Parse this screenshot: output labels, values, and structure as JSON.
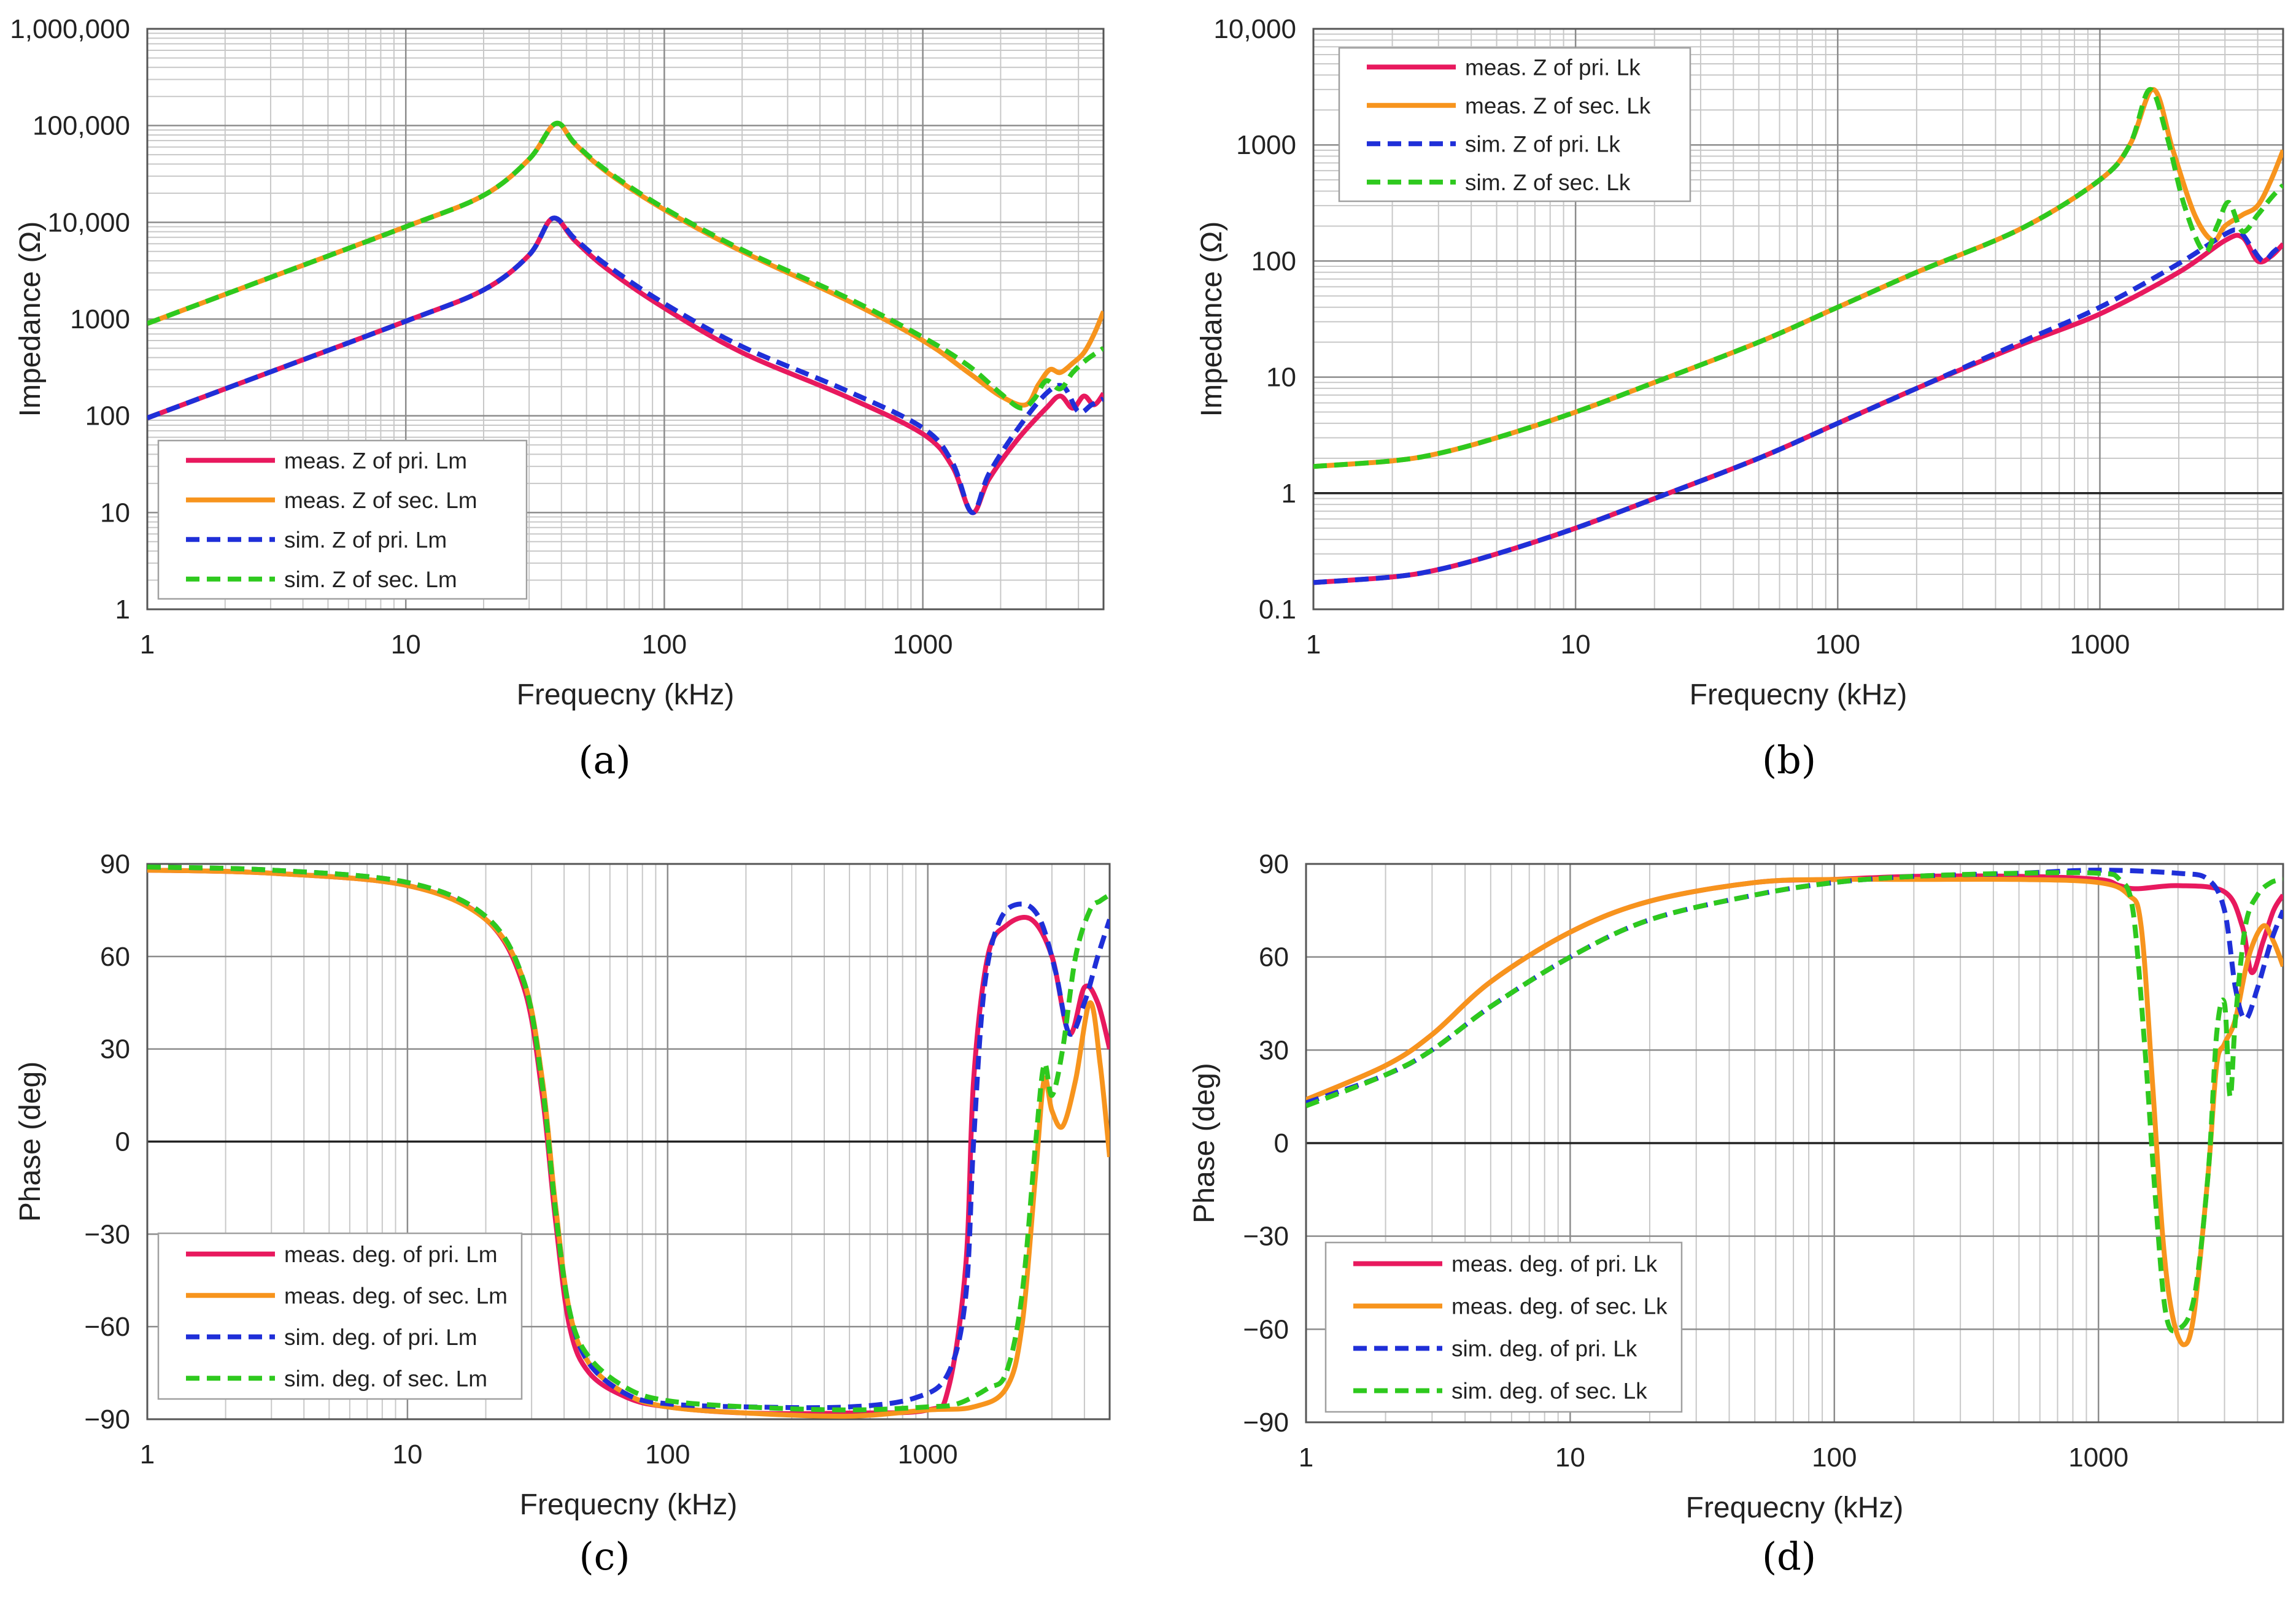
{
  "chart_data": [
    {
      "panel_label": "(a)",
      "type": "line",
      "xlabel": "Frequecny (kHz)",
      "ylabel": "Impedance (Ω)",
      "x_scale": "log",
      "y_scale": "log",
      "xlim": [
        1,
        5000
      ],
      "ylim": [
        1,
        1000000
      ],
      "x_ticks": [
        1,
        10,
        100,
        1000
      ],
      "x_tick_labels": [
        "1",
        "10",
        "100",
        "1000"
      ],
      "y_ticks": [
        1,
        10,
        100,
        1000,
        10000,
        100000,
        1000000
      ],
      "y_tick_labels": [
        "1",
        "10",
        "100",
        "1000",
        "10,000",
        "100,000",
        "1,000,000"
      ],
      "grid": true,
      "legend_position": "bottom-left",
      "series": [
        {
          "name": "meas. Z of pri. Lm",
          "color": "#e8195e",
          "dash": "solid",
          "x": [
            1,
            3,
            10,
            20,
            30,
            37,
            45,
            60,
            100,
            200,
            500,
            1000,
            1300,
            1550,
            1800,
            2300,
            3000,
            3400,
            3800,
            4200,
            4600,
            5000
          ],
          "y": [
            95,
            285,
            950,
            2000,
            4600,
            11000,
            6500,
            3300,
            1300,
            450,
            160,
            65,
            30,
            10,
            22,
            55,
            120,
            160,
            120,
            160,
            130,
            170
          ]
        },
        {
          "name": "meas. Z of sec. Lm",
          "color": "#f7941d",
          "dash": "solid",
          "x": [
            1,
            3,
            10,
            20,
            30,
            38,
            45,
            60,
            100,
            200,
            500,
            1000,
            1500,
            2000,
            2500,
            2800,
            3100,
            3400,
            3800,
            4200,
            4600,
            5000
          ],
          "y": [
            900,
            2700,
            9000,
            19000,
            45000,
            105000,
            65000,
            33000,
            13500,
            5000,
            1600,
            600,
            280,
            160,
            130,
            210,
            300,
            280,
            350,
            450,
            700,
            1200
          ]
        },
        {
          "name": "sim. Z of pri. Lm",
          "color": "#1f2fd8",
          "dash": "dashed",
          "x": [
            1,
            3,
            10,
            20,
            30,
            37,
            45,
            60,
            100,
            200,
            500,
            1000,
            1300,
            1550,
            1800,
            2300,
            3000,
            3500,
            4000,
            4500,
            5000
          ],
          "y": [
            95,
            285,
            950,
            2000,
            4600,
            11000,
            6800,
            3600,
            1450,
            520,
            185,
            75,
            33,
            10,
            25,
            70,
            170,
            200,
            110,
            130,
            150
          ]
        },
        {
          "name": "sim. Z of sec. Lm",
          "color": "#2ec91e",
          "dash": "dashed",
          "x": [
            1,
            3,
            10,
            20,
            30,
            38,
            45,
            60,
            100,
            200,
            500,
            1000,
            1500,
            2000,
            2400,
            2700,
            3000,
            3400,
            3800,
            4300,
            5000
          ],
          "y": [
            900,
            2700,
            9000,
            19000,
            45000,
            105000,
            66000,
            34000,
            14000,
            5200,
            1700,
            650,
            330,
            170,
            120,
            150,
            230,
            190,
            280,
            380,
            500
          ]
        }
      ]
    },
    {
      "panel_label": "(b)",
      "type": "line",
      "xlabel": "Frequecny (kHz)",
      "ylabel": "Impedance (Ω)",
      "x_scale": "log",
      "y_scale": "log",
      "xlim": [
        1,
        5000
      ],
      "ylim": [
        0.1,
        10000
      ],
      "x_ticks": [
        1,
        10,
        100,
        1000
      ],
      "x_tick_labels": [
        "1",
        "10",
        "100",
        "1000"
      ],
      "y_ticks": [
        0.1,
        1,
        10,
        100,
        1000,
        10000
      ],
      "y_tick_labels": [
        "0.1",
        "1",
        "10",
        "100",
        "1000",
        "10,000"
      ],
      "grid": true,
      "legend_position": "top-left",
      "series": [
        {
          "name": "meas. Z of pri. Lk",
          "color": "#e8195e",
          "dash": "solid",
          "x": [
            1,
            2,
            3,
            5,
            10,
            20,
            50,
            100,
            200,
            500,
            1000,
            2000,
            3000,
            3500,
            4000,
            4500,
            5000
          ],
          "y": [
            0.17,
            0.19,
            0.22,
            0.3,
            0.5,
            0.9,
            2,
            4,
            8,
            19,
            35,
            80,
            150,
            160,
            100,
            110,
            140
          ]
        },
        {
          "name": "meas. Z of sec. Lk",
          "color": "#f7941d",
          "dash": "solid",
          "x": [
            1,
            2,
            3,
            5,
            10,
            20,
            50,
            100,
            200,
            500,
            1000,
            1300,
            1600,
            1900,
            2300,
            2700,
            3000,
            3500,
            4000,
            4500,
            5000
          ],
          "y": [
            1.7,
            1.9,
            2.2,
            3,
            5,
            9,
            20,
            40,
            80,
            190,
            500,
            1000,
            3000,
            900,
            250,
            150,
            200,
            250,
            300,
            500,
            900
          ]
        },
        {
          "name": "sim. Z of pri. Lk",
          "color": "#1f2fd8",
          "dash": "dashed",
          "x": [
            1,
            2,
            3,
            5,
            10,
            20,
            50,
            100,
            200,
            500,
            1000,
            2000,
            3000,
            3400,
            3800,
            4200,
            4600,
            5000
          ],
          "y": [
            0.17,
            0.19,
            0.22,
            0.3,
            0.5,
            0.9,
            2,
            4,
            8,
            20,
            40,
            95,
            170,
            180,
            130,
            100,
            120,
            140
          ]
        },
        {
          "name": "sim. Z of sec. Lk",
          "color": "#2ec91e",
          "dash": "dashed",
          "x": [
            1,
            2,
            3,
            5,
            10,
            20,
            50,
            100,
            200,
            500,
            1000,
            1300,
            1550,
            1800,
            2100,
            2500,
            2800,
            3100,
            3500,
            4000,
            4500,
            5000
          ],
          "y": [
            1.7,
            1.9,
            2.2,
            3,
            5,
            9,
            20,
            40,
            80,
            190,
            500,
            1000,
            3000,
            1200,
            300,
            120,
            200,
            320,
            180,
            250,
            350,
            450
          ]
        }
      ]
    },
    {
      "panel_label": "(c)",
      "type": "line",
      "xlabel": "Frequecny (kHz)",
      "ylabel": "Phase (deg)",
      "x_scale": "log",
      "y_scale": "linear",
      "xlim": [
        1,
        5000
      ],
      "ylim": [
        -90,
        90
      ],
      "x_ticks": [
        1,
        10,
        100,
        1000
      ],
      "x_tick_labels": [
        "1",
        "10",
        "100",
        "1000"
      ],
      "y_ticks": [
        -90,
        -60,
        -30,
        0,
        30,
        60,
        90
      ],
      "y_tick_labels": [
        "−90",
        "−60",
        "−30",
        "0",
        "30",
        "60",
        "90"
      ],
      "grid": true,
      "legend_position": "bottom-left",
      "series": [
        {
          "name": "meas. deg. of pri. Lm",
          "color": "#e8195e",
          "dash": "solid",
          "x": [
            1,
            3,
            10,
            20,
            28,
            33,
            37,
            42,
            50,
            70,
            100,
            200,
            500,
            1000,
            1200,
            1400,
            1500,
            1700,
            2000,
            2500,
            3000,
            3500,
            4000,
            4500,
            5000
          ],
          "y": [
            88,
            87,
            83,
            72,
            50,
            15,
            -25,
            -60,
            -75,
            -83,
            -86,
            -88,
            -88,
            -87,
            -80,
            -40,
            20,
            60,
            70,
            72,
            60,
            35,
            50,
            45,
            30
          ]
        },
        {
          "name": "meas. deg. of sec. Lm",
          "color": "#f7941d",
          "dash": "solid",
          "x": [
            1,
            3,
            10,
            20,
            28,
            33,
            37,
            42,
            50,
            70,
            100,
            200,
            500,
            1000,
            1500,
            2000,
            2300,
            2600,
            2800,
            3000,
            3300,
            3700,
            4200,
            4600,
            5000
          ],
          "y": [
            88,
            87,
            83,
            72,
            52,
            20,
            -20,
            -55,
            -72,
            -82,
            -86,
            -88,
            -89,
            -87,
            -86,
            -80,
            -60,
            -10,
            20,
            10,
            5,
            20,
            45,
            25,
            -5
          ]
        },
        {
          "name": "sim. deg. of pri. Lm",
          "color": "#1f2fd8",
          "dash": "dashed",
          "x": [
            1,
            3,
            10,
            20,
            28,
            33,
            37,
            42,
            50,
            70,
            100,
            200,
            500,
            900,
            1200,
            1400,
            1500,
            1650,
            1900,
            2300,
            2700,
            3100,
            3500,
            4000,
            4500,
            5000
          ],
          "y": [
            89,
            88,
            84,
            73,
            52,
            18,
            -22,
            -55,
            -72,
            -82,
            -85,
            -86,
            -86,
            -83,
            -75,
            -50,
            0,
            50,
            72,
            77,
            72,
            55,
            35,
            45,
            60,
            72
          ]
        },
        {
          "name": "sim. deg. of sec. Lm",
          "color": "#2ec91e",
          "dash": "dashed",
          "x": [
            1,
            3,
            10,
            20,
            28,
            33,
            37,
            42,
            50,
            70,
            100,
            200,
            500,
            1000,
            1300,
            1700,
            2000,
            2300,
            2600,
            2800,
            3000,
            3300,
            3700,
            4200,
            4600,
            5000
          ],
          "y": [
            89,
            88,
            84,
            73,
            52,
            18,
            -22,
            -55,
            -70,
            -80,
            -84,
            -86,
            -87,
            -86,
            -85,
            -80,
            -75,
            -50,
            0,
            25,
            15,
            30,
            60,
            75,
            78,
            80
          ]
        }
      ]
    },
    {
      "panel_label": "(d)",
      "type": "line",
      "xlabel": "Frequecny (kHz)",
      "ylabel": "Phase (deg)",
      "x_scale": "log",
      "y_scale": "linear",
      "xlim": [
        1,
        5000
      ],
      "ylim": [
        -90,
        90
      ],
      "x_ticks": [
        1,
        10,
        100,
        1000
      ],
      "x_tick_labels": [
        "1",
        "10",
        "100",
        "1000"
      ],
      "y_ticks": [
        -90,
        -60,
        -30,
        0,
        30,
        60,
        90
      ],
      "y_tick_labels": [
        "−90",
        "−60",
        "−30",
        "0",
        "30",
        "60",
        "90"
      ],
      "grid": true,
      "legend_position": "bottom-left",
      "series": [
        {
          "name": "meas. deg. of pri. Lk",
          "color": "#e8195e",
          "dash": "solid",
          "x": [
            1,
            2,
            3,
            5,
            10,
            20,
            50,
            100,
            200,
            500,
            1000,
            1200,
            1400,
            2000,
            3000,
            3500,
            3800,
            4200,
            4600,
            5000
          ],
          "y": [
            14,
            25,
            35,
            52,
            68,
            78,
            84,
            85,
            86,
            86,
            85,
            83,
            82,
            83,
            81,
            70,
            55,
            65,
            75,
            80
          ]
        },
        {
          "name": "meas. deg. of sec. Lk",
          "color": "#f7941d",
          "dash": "solid",
          "x": [
            1,
            2,
            3,
            5,
            10,
            20,
            50,
            100,
            200,
            500,
            1000,
            1300,
            1450,
            1600,
            1750,
            1900,
            2100,
            2300,
            2600,
            2800,
            3000,
            3300,
            3700,
            4200,
            4600,
            5000
          ],
          "y": [
            14,
            25,
            35,
            52,
            68,
            78,
            84,
            85,
            85,
            85,
            84,
            80,
            70,
            20,
            -30,
            -55,
            -65,
            -55,
            -10,
            25,
            32,
            40,
            60,
            70,
            65,
            57
          ]
        },
        {
          "name": "sim. deg. of pri. Lk",
          "color": "#1f2fd8",
          "dash": "dashed",
          "x": [
            1,
            2,
            3,
            5,
            10,
            20,
            50,
            100,
            200,
            500,
            1000,
            2000,
            2600,
            3000,
            3300,
            3600,
            4000,
            4500,
            5000
          ],
          "y": [
            13,
            22,
            30,
            44,
            60,
            72,
            80,
            84,
            86,
            87,
            88,
            87,
            85,
            75,
            50,
            40,
            50,
            65,
            75
          ]
        },
        {
          "name": "sim. deg. of sec. Lk",
          "color": "#2ec91e",
          "dash": "dashed",
          "x": [
            1,
            2,
            3,
            5,
            10,
            20,
            50,
            100,
            200,
            500,
            1000,
            1200,
            1350,
            1500,
            1650,
            1800,
            2000,
            2300,
            2600,
            2800,
            3000,
            3150,
            3300,
            3600,
            4000,
            4500,
            5000
          ],
          "y": [
            12,
            22,
            30,
            44,
            60,
            72,
            80,
            84,
            86,
            87,
            87,
            85,
            75,
            30,
            -20,
            -55,
            -60,
            -50,
            -10,
            35,
            45,
            15,
            40,
            70,
            80,
            84,
            85
          ]
        }
      ]
    }
  ]
}
